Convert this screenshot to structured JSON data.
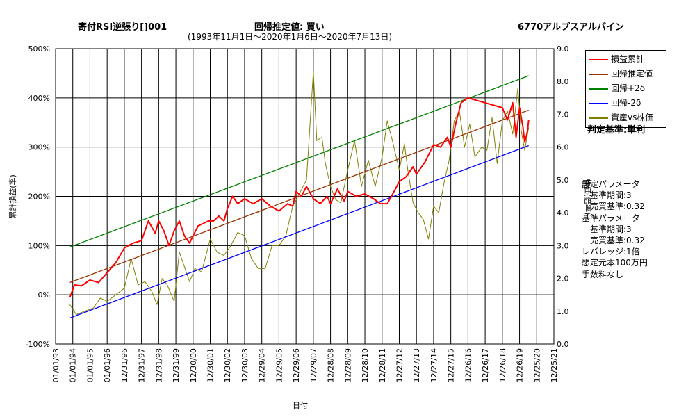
{
  "header": {
    "title_left": "寄付RSI逆張り[]001",
    "title_center": "回帰推定値: 買い",
    "title_right": "6770アルプスアルパイン",
    "subtitle": "(1993年11月1日～2020年1月6日～2020年7月13日)"
  },
  "legend": [
    {
      "label": "損益累計",
      "color": "#ff0000"
    },
    {
      "label": "回帰推定値",
      "color": "#993300"
    },
    {
      "label": "回帰+2δ",
      "color": "#008000"
    },
    {
      "label": "回帰-2δ",
      "color": "#0000ff"
    },
    {
      "label": "資産vs株価",
      "color": "#808000"
    }
  ],
  "criterion": "判定基準:単利",
  "params": [
    "設定パラメータ",
    "　基準期間:3",
    "　売買基準:0.32",
    "基準パラメータ",
    "　基準期間:3",
    "　売買基準:0.32",
    "レバレッジ:1倍",
    "想定元本100万円",
    "手数料なし"
  ],
  "chart_data": {
    "type": "line",
    "xlabel": "日付",
    "ylabel": "累計損益(率)",
    "y2label": "株価(倍率)",
    "x_tick_labels": [
      "01/01/93",
      "01/01/94",
      "01/01/95",
      "01/01/96",
      "12/31/96",
      "12/31/97",
      "12/31/98",
      "12/31/99",
      "12/30/00",
      "12/30/01",
      "12/30/02",
      "12/30/03",
      "12/29/04",
      "12/29/05",
      "12/29/06",
      "12/29/07",
      "12/28/08",
      "12/28/09",
      "12/28/10",
      "12/28/11",
      "12/27/12",
      "12/27/13",
      "12/27/14",
      "12/27/15",
      "12/26/16",
      "12/26/17",
      "12/26/18",
      "12/26/19",
      "12/25/20",
      "12/25/21"
    ],
    "ylim": [
      -100,
      500
    ],
    "y_tick_labels": [
      "-100%",
      "0%",
      "100%",
      "200%",
      "300%",
      "400%",
      "500%"
    ],
    "y2lim": [
      0.0,
      9.0
    ],
    "y2_tick_labels": [
      "0.0",
      "1.0",
      "2.0",
      "3.0",
      "4.0",
      "5.0",
      "6.0",
      "7.0",
      "8.0",
      "9.0"
    ],
    "grid": true,
    "legend_position": "top-right",
    "series": [
      {
        "name": "損益累計",
        "axis": "left",
        "color": "#ff0000",
        "x": [
          1993.83,
          1994.1,
          1994.5,
          1995.0,
          1995.5,
          1996.0,
          1996.5,
          1997.0,
          1997.5,
          1998.0,
          1998.4,
          1998.8,
          1999.0,
          1999.3,
          1999.6,
          1999.9,
          2000.2,
          2000.5,
          2000.8,
          2001.0,
          2001.3,
          2001.6,
          2001.9,
          2002.2,
          2002.5,
          2002.8,
          2003.0,
          2003.3,
          2003.6,
          2004.0,
          2004.5,
          2005.0,
          2005.5,
          2006.0,
          2006.5,
          2006.8,
          2007.0,
          2007.3,
          2007.6,
          2008.0,
          2008.4,
          2008.8,
          2009.0,
          2009.4,
          2009.8,
          2010.0,
          2010.5,
          2011.0,
          2011.5,
          2011.9,
          2012.3,
          2012.7,
          2013.0,
          2013.4,
          2013.8,
          2014.0,
          2014.5,
          2015.0,
          2015.4,
          2015.8,
          2016.0,
          2016.3,
          2016.6,
          2017.0,
          2017.5,
          2018.0,
          2018.5,
          2019.0,
          2019.3,
          2019.6,
          2019.8,
          2020.0,
          2020.2,
          2020.3,
          2020.45,
          2020.53
        ],
        "y": [
          -5,
          20,
          18,
          30,
          25,
          45,
          65,
          95,
          105,
          110,
          150,
          125,
          150,
          130,
          100,
          130,
          150,
          120,
          105,
          120,
          140,
          145,
          150,
          150,
          160,
          150,
          175,
          200,
          185,
          195,
          185,
          195,
          180,
          170,
          185,
          180,
          210,
          200,
          220,
          195,
          185,
          200,
          185,
          215,
          190,
          210,
          200,
          205,
          195,
          185,
          185,
          210,
          230,
          240,
          260,
          245,
          270,
          305,
          300,
          320,
          300,
          350,
          390,
          400,
          395,
          390,
          385,
          380,
          355,
          390,
          320,
          380,
          340,
          310,
          330,
          355
        ]
      },
      {
        "name": "回帰推定値",
        "axis": "left",
        "color": "#993300",
        "x": [
          1993.83,
          2020.53
        ],
        "y": [
          25,
          375
        ]
      },
      {
        "name": "回帰+2δ",
        "axis": "left",
        "color": "#008000",
        "x": [
          1993.83,
          2020.53
        ],
        "y": [
          97,
          445
        ]
      },
      {
        "name": "回帰-2δ",
        "axis": "left",
        "color": "#0000ff",
        "x": [
          1993.83,
          2020.53
        ],
        "y": [
          -47,
          303
        ]
      },
      {
        "name": "資産vs株価",
        "axis": "right",
        "color": "#808000",
        "x": [
          1993.83,
          1994.2,
          1994.7,
          1995.2,
          1995.6,
          1996.0,
          1996.5,
          1997.0,
          1997.4,
          1997.8,
          1998.2,
          1998.6,
          1998.9,
          1999.2,
          1999.5,
          1999.9,
          2000.2,
          2000.4,
          2000.8,
          2001.1,
          2001.5,
          2002.0,
          2002.4,
          2002.8,
          2003.2,
          2003.6,
          2004.0,
          2004.4,
          2004.8,
          2005.2,
          2005.6,
          2006.0,
          2006.4,
          2006.8,
          2007.2,
          2007.6,
          2008.0,
          2008.2,
          2008.5,
          2008.7,
          2009.0,
          2009.3,
          2009.6,
          2010.0,
          2010.4,
          2010.8,
          2011.2,
          2011.6,
          2012.0,
          2012.3,
          2012.6,
          2013.0,
          2013.3,
          2013.5,
          2013.8,
          2014.1,
          2014.4,
          2014.7,
          2015.0,
          2015.3,
          2015.6,
          2015.9,
          2016.2,
          2016.5,
          2016.8,
          2017.1,
          2017.4,
          2017.8,
          2018.1,
          2018.4,
          2018.7,
          2019.0,
          2019.3,
          2019.6,
          2019.9,
          2020.1,
          2020.3,
          2020.53
        ],
        "y": [
          1.2,
          0.9,
          1.0,
          1.1,
          1.4,
          1.3,
          1.5,
          1.7,
          2.6,
          1.8,
          1.9,
          1.6,
          1.2,
          2.0,
          1.8,
          1.3,
          2.8,
          2.5,
          1.9,
          2.3,
          2.2,
          3.2,
          2.8,
          2.7,
          3.0,
          3.4,
          3.3,
          2.6,
          2.3,
          2.3,
          3.0,
          3.0,
          3.3,
          4.2,
          4.6,
          5.0,
          8.3,
          6.2,
          6.3,
          5.5,
          4.8,
          4.4,
          4.3,
          5.3,
          6.2,
          4.8,
          5.6,
          4.8,
          5.7,
          6.8,
          6.2,
          5.3,
          6.1,
          5.3,
          4.3,
          4.0,
          3.8,
          3.2,
          4.2,
          4.0,
          4.9,
          5.6,
          6.8,
          7.1,
          6.0,
          6.7,
          5.7,
          6.0,
          5.9,
          6.9,
          5.5,
          6.8,
          7.1,
          6.4,
          7.8,
          6.5,
          5.9,
          6.6
        ]
      }
    ]
  },
  "colors": {
    "grid": "#000000",
    "background": "#ffffff"
  }
}
